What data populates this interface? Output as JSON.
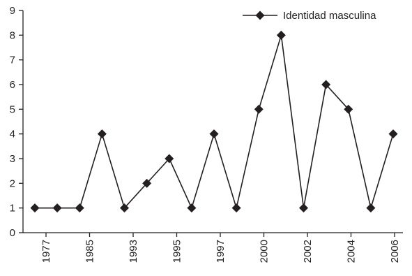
{
  "chart_data": {
    "type": "line",
    "title": "",
    "xlabel": "",
    "ylabel": "",
    "ylim": [
      0,
      9
    ],
    "yticks": [
      0,
      1,
      2,
      3,
      4,
      5,
      6,
      7,
      8,
      9
    ],
    "x_tick_labels": [
      "1977",
      "1985",
      "1993",
      "1995",
      "1997",
      "2000",
      "2002",
      "2004",
      "2006"
    ],
    "grid": false,
    "legend_position": "top-right",
    "line_color": "#231f20",
    "marker": "diamond",
    "series": [
      {
        "name": "Identidad masculina",
        "values": [
          1,
          1,
          1,
          4,
          1,
          2,
          3,
          1,
          4,
          1,
          5,
          8,
          1,
          6,
          5,
          1,
          4
        ]
      }
    ]
  }
}
